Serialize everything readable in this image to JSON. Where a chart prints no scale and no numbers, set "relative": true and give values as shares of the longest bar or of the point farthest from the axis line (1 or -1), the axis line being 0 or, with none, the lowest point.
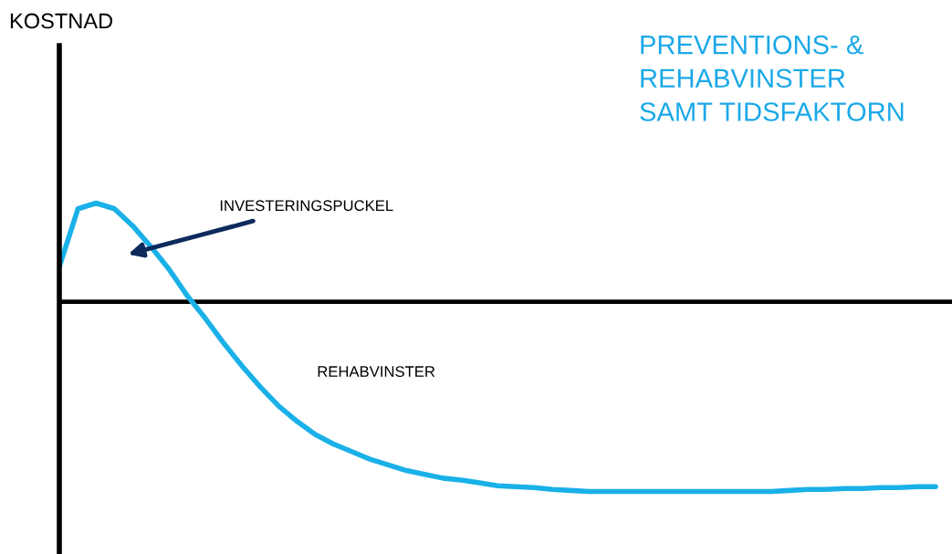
{
  "chart_data": {
    "type": "line",
    "relative": true,
    "title": "PREVENTIONS- &\nREHABVINSTER\nSAMT TIDSFAKTORN",
    "categories": [
      null,
      null,
      null,
      null,
      null,
      null,
      null,
      null,
      null,
      null,
      null,
      null,
      null,
      null,
      null,
      null,
      null,
      null,
      null,
      null,
      null,
      null,
      null,
      null,
      null,
      null,
      null,
      null,
      null,
      null,
      null,
      null,
      null,
      null,
      null,
      null,
      null,
      null,
      null,
      null,
      null,
      null,
      null,
      null,
      null,
      null,
      null,
      null,
      null
    ],
    "series": [
      {
        "color": "#1ab0e8",
        "values": [
          0.19,
          0.49,
          0.52,
          0.49,
          0.4,
          0.29,
          0.17,
          0.03,
          -0.09,
          -0.22,
          -0.34,
          -0.45,
          -0.55,
          -0.63,
          -0.7,
          -0.75,
          -0.79,
          -0.83,
          -0.86,
          -0.89,
          -0.91,
          -0.93,
          -0.94,
          -0.955,
          -0.97,
          -0.975,
          -0.98,
          -0.99,
          -0.995,
          -1,
          -1,
          -1,
          -1,
          -1,
          -1,
          -1,
          -1,
          -1,
          -1,
          -1,
          -0.995,
          -0.99,
          -0.99,
          -0.985,
          -0.985,
          -0.98,
          -0.98,
          -0.975,
          -0.975
        ]
      }
    ],
    "annotations": [
      "KOSTNAD",
      "INVESTERINGSPUCKEL",
      "REHABVINSTER"
    ],
    "legend": false,
    "marker": "none",
    "line_style": "solid"
  }
}
